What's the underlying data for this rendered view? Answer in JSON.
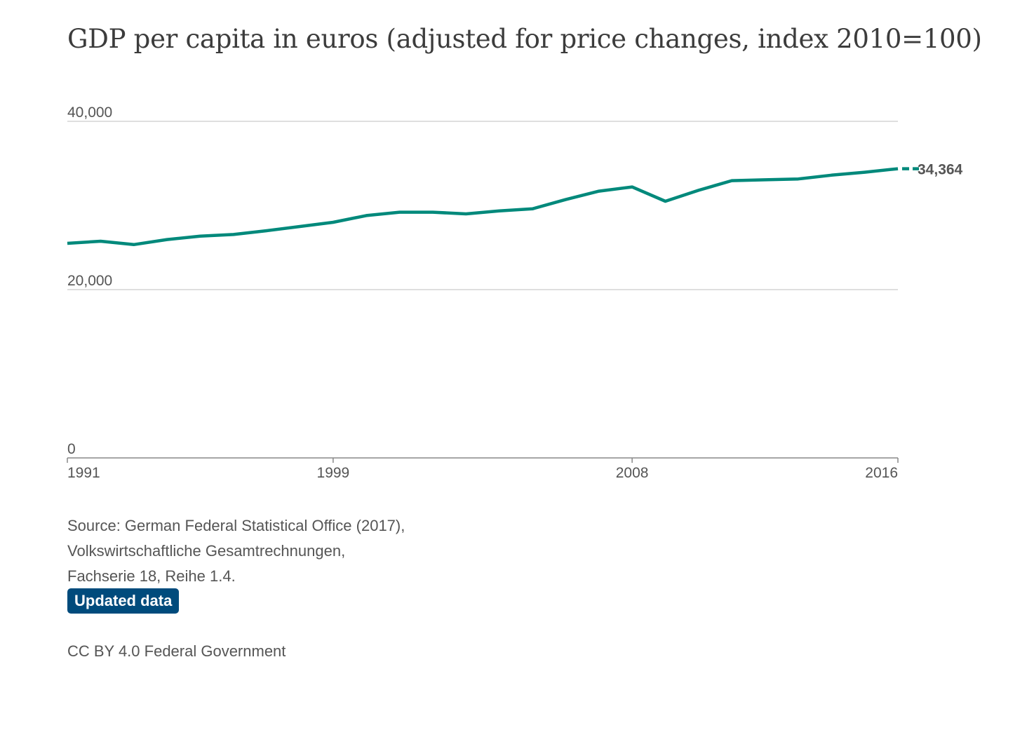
{
  "colors": {
    "line": "#00897b",
    "grid": "#cccccc",
    "axis": "#888888",
    "badge_bg": "#004b7c",
    "badge_text": "#ffffff",
    "text": "#555555"
  },
  "chart_data": {
    "type": "line",
    "title": "GDP per capita in euros (adjusted for price changes, index 2010=100)",
    "xlabel": "",
    "ylabel": "",
    "x": [
      1991,
      1992,
      1993,
      1994,
      1995,
      1996,
      1997,
      1998,
      1999,
      2000,
      2001,
      2002,
      2003,
      2004,
      2005,
      2006,
      2007,
      2008,
      2009,
      2010,
      2011,
      2012,
      2013,
      2014,
      2015,
      2016
    ],
    "series": [
      {
        "values": [
          25500,
          25750,
          25350,
          25950,
          26350,
          26550,
          27000,
          27500,
          28000,
          28800,
          29200,
          29200,
          29000,
          29350,
          29600,
          30700,
          31700,
          32200,
          30500,
          31800,
          32950,
          33050,
          33150,
          33600,
          33950,
          34364
        ]
      }
    ],
    "xlim": [
      1991,
      2016
    ],
    "ylim": [
      0,
      40000
    ],
    "yticks": [
      {
        "value": 0,
        "label": "0"
      },
      {
        "value": 20000,
        "label": "20,000"
      },
      {
        "value": 40000,
        "label": "40,000"
      }
    ],
    "xticks": [
      {
        "value": 1991,
        "label": "1991"
      },
      {
        "value": 1999,
        "label": "1999"
      },
      {
        "value": 2008,
        "label": "2008"
      },
      {
        "value": 2016,
        "label": "2016"
      }
    ],
    "end_label": "34,364",
    "grid": true,
    "legend": "none"
  },
  "footer": {
    "source_lines": [
      "Source: German Federal Statistical Office (2017),",
      "Volkswirtschaftliche Gesamtrechnungen,",
      "Fachserie 18, Reihe 1.4."
    ],
    "badge_label": "Updated data",
    "credit": "CC BY 4.0 Federal Government"
  }
}
